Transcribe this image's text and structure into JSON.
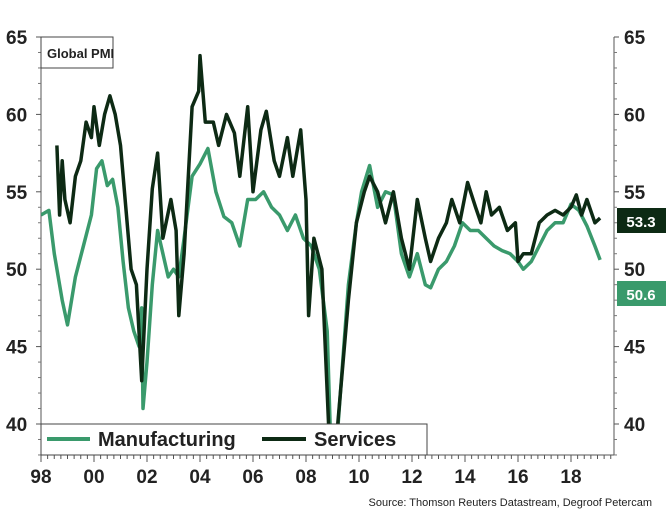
{
  "chart_data": {
    "type": "line",
    "title": "Global PMI",
    "source": "Source: Thomson Reuters Datastream, Degroof Petercam",
    "ylim": [
      38,
      65
    ],
    "xlim": [
      1998,
      2019.6
    ],
    "grid": false,
    "legend_placement": "bottom-left",
    "y_ticks": [
      "40",
      "45",
      "50",
      "55",
      "60",
      "65"
    ],
    "y_tick_values": [
      40,
      45,
      50,
      55,
      60,
      65
    ],
    "x_ticks": [
      "98",
      "00",
      "02",
      "04",
      "06",
      "08",
      "10",
      "12",
      "14",
      "16",
      "18"
    ],
    "x_tick_values": [
      1998,
      2000,
      2002,
      2004,
      2006,
      2008,
      2010,
      2012,
      2014,
      2016,
      2018
    ],
    "series": [
      {
        "name": "Manufacturing",
        "color": "#3a9a6c",
        "last_label": "50.6",
        "x": [
          1998.0,
          1998.3,
          1998.5,
          1998.8,
          1999.0,
          1999.3,
          1999.6,
          1999.9,
          2000.1,
          2000.3,
          2000.5,
          2000.7,
          2000.9,
          2001.1,
          2001.3,
          2001.5,
          2001.7,
          2001.8,
          2001.85,
          2002.0,
          2002.2,
          2002.4,
          2002.6,
          2002.8,
          2003.0,
          2003.2,
          2003.4,
          2003.7,
          2004.0,
          2004.3,
          2004.6,
          2004.9,
          2005.2,
          2005.5,
          2005.8,
          2006.1,
          2006.4,
          2006.7,
          2007.0,
          2007.3,
          2007.6,
          2007.9,
          2008.2,
          2008.5,
          2008.8,
          2009.0,
          2009.3,
          2009.6,
          2009.9,
          2010.1,
          2010.4,
          2010.7,
          2011.0,
          2011.3,
          2011.6,
          2011.9,
          2012.2,
          2012.5,
          2012.7,
          2013.0,
          2013.3,
          2013.6,
          2013.9,
          2014.2,
          2014.5,
          2014.8,
          2015.1,
          2015.4,
          2015.7,
          2016.0,
          2016.2,
          2016.5,
          2016.8,
          2017.1,
          2017.4,
          2017.7,
          2018.0,
          2018.3,
          2018.6,
          2018.9,
          2019.1
        ],
        "y": [
          53.5,
          53.8,
          51,
          48,
          46.4,
          49.5,
          51.5,
          53.5,
          56.5,
          57,
          55.4,
          55.8,
          54,
          50.5,
          47.5,
          46,
          45,
          47.5,
          41,
          44,
          49,
          52.5,
          51,
          49.5,
          50,
          49.5,
          52,
          56,
          56.8,
          57.8,
          55,
          53.4,
          53,
          51.5,
          54.5,
          54.5,
          55,
          54,
          53.5,
          52.5,
          53.5,
          52,
          51.5,
          50,
          46,
          35,
          42,
          49,
          53,
          55,
          56.7,
          54,
          55,
          54.8,
          51,
          49.5,
          51,
          49,
          48.8,
          50,
          50.5,
          51.5,
          53,
          52.5,
          52.5,
          52,
          51.5,
          51.2,
          51,
          50.5,
          50,
          50.5,
          51.5,
          52.5,
          53,
          53,
          54.2,
          53.8,
          52.8,
          51.5,
          50.6
        ]
      },
      {
        "name": "Services",
        "color": "#0d2a14",
        "last_label": "53.3",
        "x": [
          1998.6,
          1998.7,
          1998.8,
          1998.9,
          1999.1,
          1999.3,
          1999.5,
          1999.7,
          1999.9,
          2000.0,
          2000.2,
          2000.4,
          2000.6,
          2000.8,
          2001.0,
          2001.2,
          2001.4,
          2001.6,
          2001.8,
          2002.0,
          2002.2,
          2002.4,
          2002.6,
          2002.9,
          2003.1,
          2003.2,
          2003.4,
          2003.7,
          2003.95,
          2004.0,
          2004.2,
          2004.5,
          2004.7,
          2005.0,
          2005.3,
          2005.5,
          2005.8,
          2006.0,
          2006.3,
          2006.5,
          2006.8,
          2007.0,
          2007.3,
          2007.5,
          2007.8,
          2008.0,
          2008.1,
          2008.3,
          2008.6,
          2008.9,
          2009.1,
          2009.3,
          2009.6,
          2009.9,
          2010.2,
          2010.4,
          2010.7,
          2011.0,
          2011.3,
          2011.6,
          2011.9,
          2012.2,
          2012.5,
          2012.7,
          2013.0,
          2013.3,
          2013.5,
          2013.8,
          2014.1,
          2014.4,
          2014.6,
          2014.8,
          2015.0,
          2015.3,
          2015.6,
          2015.9,
          2016.0,
          2016.2,
          2016.5,
          2016.8,
          2017.1,
          2017.4,
          2017.7,
          2018.0,
          2018.2,
          2018.4,
          2018.6,
          2018.9,
          2019.1
        ],
        "y": [
          58,
          53.5,
          57,
          54.5,
          53,
          56,
          57,
          59.5,
          58.5,
          60.5,
          58,
          60,
          61.2,
          60,
          58,
          54,
          50,
          49,
          42.8,
          50,
          55.2,
          57.5,
          52,
          54.5,
          52.5,
          47,
          51,
          60.5,
          61.5,
          63.8,
          59.5,
          59.5,
          58,
          60,
          58.8,
          56,
          60.5,
          55,
          59,
          60.2,
          57,
          56,
          58.5,
          56,
          59,
          54.5,
          47,
          52,
          50,
          38,
          38,
          42,
          48,
          53,
          55,
          56,
          55,
          53,
          55,
          52,
          50,
          54.5,
          52,
          50.5,
          52,
          53,
          54.5,
          53,
          55.6,
          54,
          53,
          55,
          53.5,
          54,
          52.5,
          53,
          50.5,
          51,
          51,
          53,
          53.5,
          53.8,
          53.5,
          54,
          54.8,
          53.5,
          54.5,
          53,
          53.3
        ]
      }
    ]
  }
}
